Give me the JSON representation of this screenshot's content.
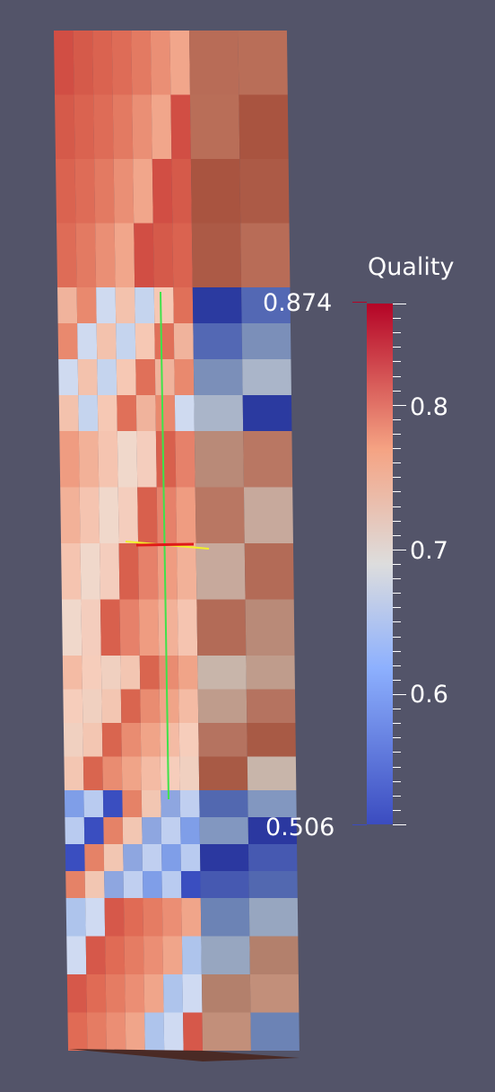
{
  "viewport": {
    "background": "#535469",
    "mesh_icon": "hex-mesh-column",
    "probe_icon": "line-probe-widget"
  },
  "colorbar": {
    "title": "Quality",
    "range_max": "0.874",
    "range_min": "0.506",
    "tick_labels": [
      "0.8",
      "0.7",
      "0.6"
    ],
    "colormap": "cool-to-warm",
    "colors": {
      "low": "#3b4cc0",
      "mid": "#dddddd",
      "high": "#b40426"
    }
  }
}
